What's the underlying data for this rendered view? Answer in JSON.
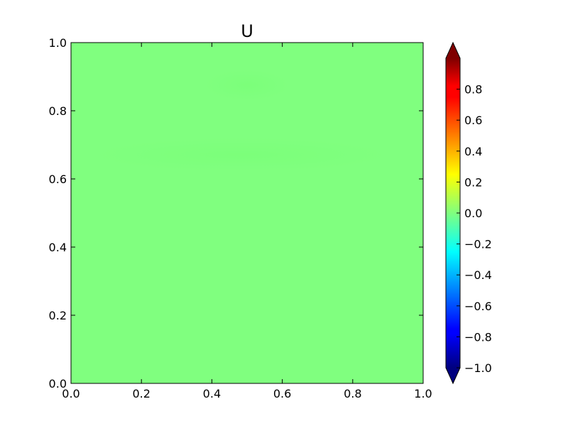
{
  "chart_data": {
    "type": "heatmap",
    "title": "U",
    "xlabel": "",
    "ylabel": "",
    "xlim": [
      0.0,
      1.0
    ],
    "ylim": [
      0.0,
      1.0
    ],
    "x_ticks": [
      "0.0",
      "0.2",
      "0.4",
      "0.6",
      "0.8",
      "1.0"
    ],
    "y_ticks": [
      "0.0",
      "0.2",
      "0.4",
      "0.6",
      "0.8",
      "1.0"
    ],
    "field_value": 0.0,
    "field_value_range": [
      -0.02,
      0.02
    ],
    "colormap": "jet",
    "colorbar": {
      "range": [
        -1.0,
        1.0
      ],
      "extend": "both",
      "ticks": [
        "−1.0",
        "−0.8",
        "−0.6",
        "−0.4",
        "−0.2",
        "0.0",
        "0.2",
        "0.4",
        "0.6",
        "0.8"
      ],
      "placement": "right"
    },
    "grid": false
  },
  "colors": {
    "field": "#80ff7f",
    "field_variation": "#7dff7a",
    "axis": "#000000",
    "background": "#ffffff"
  }
}
